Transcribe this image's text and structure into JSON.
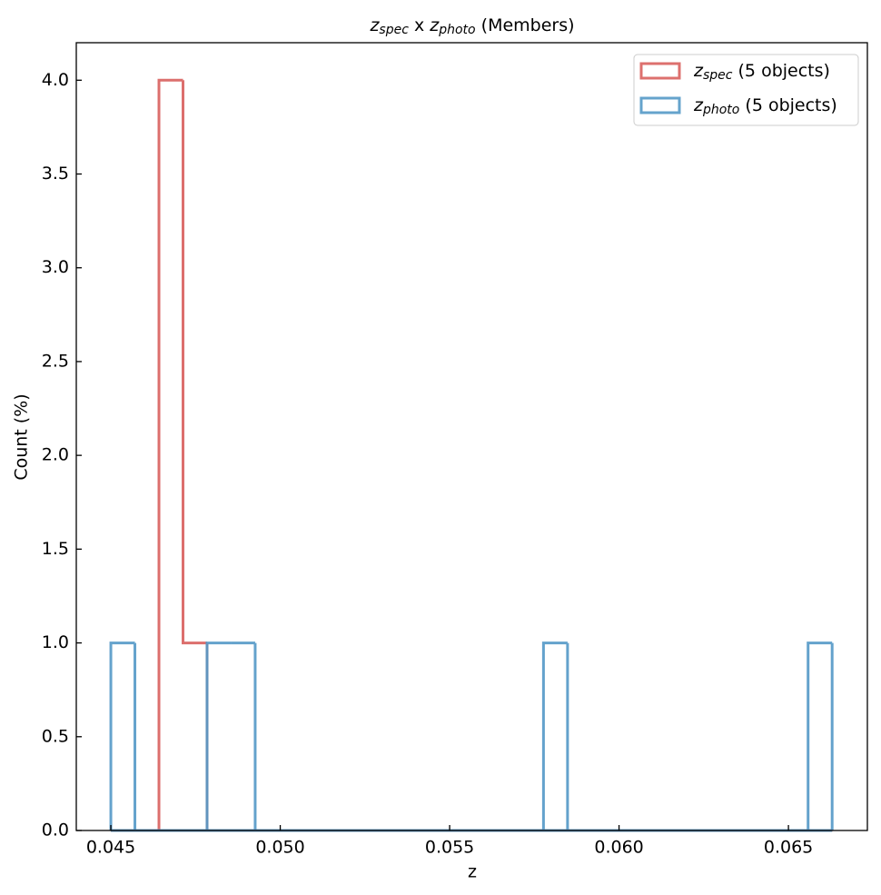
{
  "chart_data": {
    "type": "histogram",
    "title": [
      "z",
      "spec",
      " x ",
      "z",
      "photo",
      " (Members)"
    ],
    "x_label": "z",
    "y_label": "Count (%)",
    "bins": [
      0.045,
      0.04571,
      0.04642,
      0.04713,
      0.04784,
      0.04855,
      0.04926,
      0.04997,
      0.05068,
      0.05139,
      0.0521,
      0.05281,
      0.05351,
      0.05422,
      0.05493,
      0.05564,
      0.05635,
      0.05706,
      0.05777,
      0.05848,
      0.05919,
      0.0599,
      0.06061,
      0.06132,
      0.06203,
      0.06274,
      0.06345,
      0.06416,
      0.06487,
      0.06558,
      0.06629
    ],
    "series": [
      {
        "name": [
          "z",
          "spec",
          " (5 objects)"
        ],
        "color": "#d9605e",
        "values": [
          0,
          0,
          4,
          1,
          0,
          0,
          0,
          0,
          0,
          0,
          0,
          0,
          0,
          0,
          0,
          0,
          0,
          0,
          0,
          0,
          0,
          0,
          0,
          0,
          0,
          0,
          0,
          0,
          0,
          0
        ]
      },
      {
        "name": [
          "z",
          "photo",
          " (5 objects)"
        ],
        "color": "#5499c7",
        "values": [
          1,
          0,
          0,
          0,
          1,
          1,
          0,
          0,
          0,
          0,
          0,
          0,
          0,
          0,
          0,
          0,
          0,
          0,
          1,
          0,
          0,
          0,
          0,
          0,
          0,
          0,
          0,
          0,
          0,
          1
        ]
      }
    ],
    "xlim": [
      0.04398,
      0.06733
    ],
    "ylim": [
      0,
      4.2
    ],
    "xticks": [
      0.045,
      {
        "value": 0.05,
        "label": "0.050"
      },
      0.055,
      {
        "value": 0.06,
        "label": "0.060"
      },
      0.065
    ],
    "yticks": [
      {
        "value": 0,
        "label": "0.0"
      },
      0.5,
      {
        "value": 1,
        "label": "1.0"
      },
      1.5,
      {
        "value": 2,
        "label": "2.0"
      },
      2.5,
      {
        "value": 3,
        "label": "3.0"
      },
      3.5,
      {
        "value": 4,
        "label": "4.0"
      }
    ],
    "legend": "upper right",
    "grid": false
  }
}
